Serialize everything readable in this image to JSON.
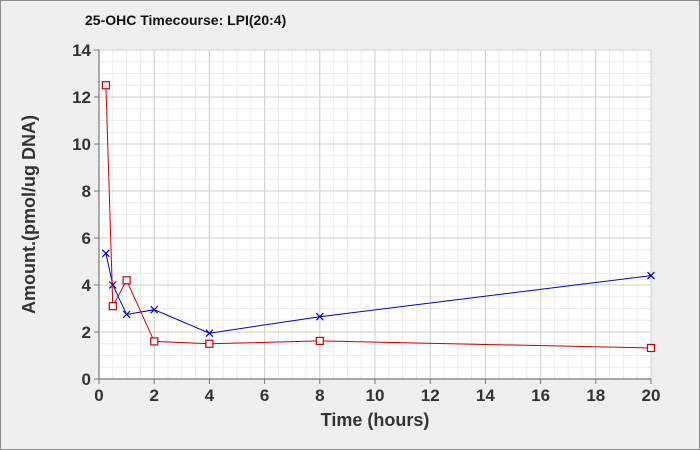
{
  "chart_data": {
    "type": "line",
    "title": "25-OHC Timecourse: LPI(20:4)",
    "xlabel": "Time (hours)",
    "ylabel": "Amount.(pmol/ug DNA)",
    "xlim": [
      0,
      20
    ],
    "ylim": [
      0,
      14
    ],
    "x_ticks": [
      0,
      2,
      4,
      6,
      8,
      10,
      12,
      14,
      16,
      18,
      20
    ],
    "y_ticks": [
      0,
      2,
      4,
      6,
      8,
      10,
      12,
      14
    ],
    "grid": true,
    "legend": "none",
    "series": [
      {
        "color": "#0000cc",
        "marker": "x",
        "x": [
          0.25,
          0.5,
          1,
          2,
          4,
          8,
          20
        ],
        "y": [
          5.35,
          4.0,
          2.75,
          2.95,
          1.95,
          2.65,
          4.4
        ]
      },
      {
        "color": "#cc0000",
        "marker": "square",
        "x": [
          0.25,
          0.5,
          1,
          2,
          4,
          8,
          20
        ],
        "y": [
          12.5,
          3.1,
          4.2,
          1.6,
          1.5,
          1.62,
          1.32
        ]
      }
    ]
  }
}
